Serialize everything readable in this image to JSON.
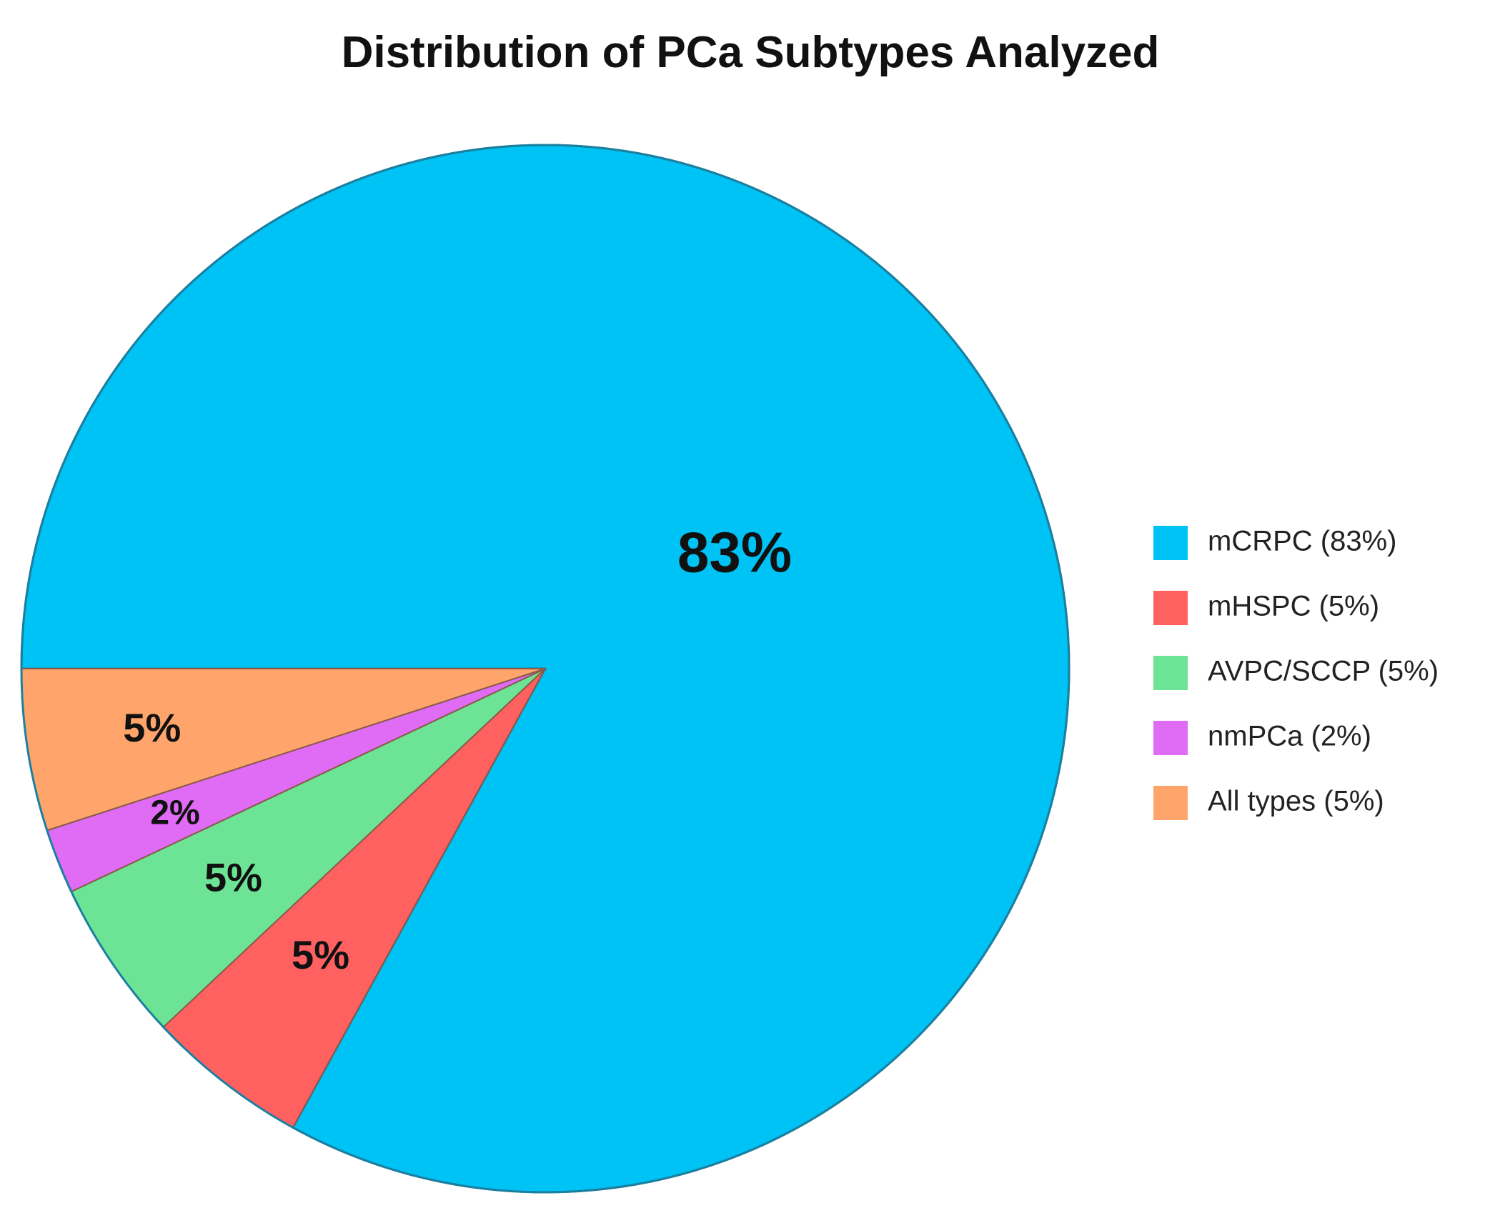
{
  "chart_data": {
    "type": "pie",
    "title": "Distribution of PCa Subtypes Analyzed",
    "slices": [
      {
        "name": "mCRPC",
        "value": 83,
        "label": "83%",
        "legend": "mCRPC (83%)",
        "color": "#00C3F5"
      },
      {
        "name": "mHSPC",
        "value": 5,
        "label": "5%",
        "legend": "mHSPC (5%)",
        "color": "#FF6161"
      },
      {
        "name": "AVPC/SCCP",
        "value": 5,
        "label": "5%",
        "legend": "AVPC/SCCP (5%)",
        "color": "#6DE495"
      },
      {
        "name": "nmPCa",
        "value": 2,
        "label": "2%",
        "legend": "nmPCa (2%)",
        "color": "#E06BF5"
      },
      {
        "name": "All types",
        "value": 5,
        "label": "5%",
        "legend": "All types (5%)",
        "color": "#FFA56B"
      }
    ],
    "legend_position": "right"
  }
}
